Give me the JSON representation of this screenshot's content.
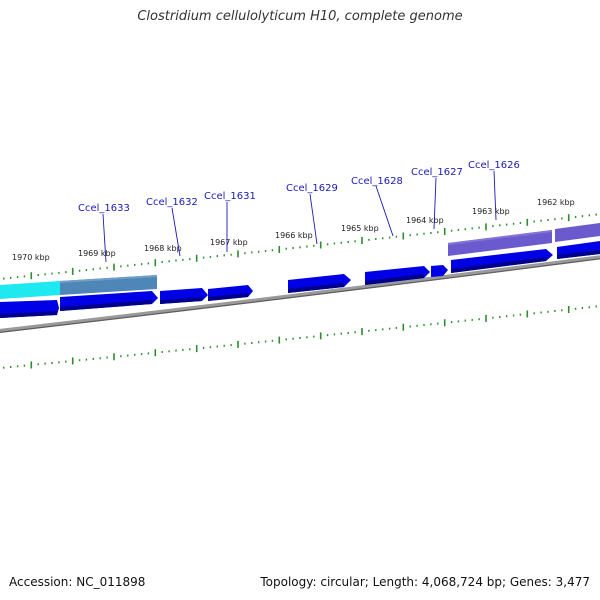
{
  "title": "Clostridium cellulolyticum H10, complete genome",
  "footer": {
    "accession": "Accession: NC_011898",
    "summary": "Topology: circular; Length: 4,068,724 bp; Genes: 3,477"
  },
  "scale_labels": [
    "1970 kbp",
    "1969 kbp",
    "1968 kbp",
    "1967 kbp",
    "1966 kbp",
    "1965 kbp",
    "1964 kbp",
    "1963 kbp",
    "1962 kbp"
  ],
  "gene_labels": [
    "Ccel_1633",
    "Ccel_1632",
    "Ccel_1631",
    "Ccel_1629",
    "Ccel_1628",
    "Ccel_1627",
    "Ccel_1626"
  ],
  "colors": {
    "gene": "#0000e6",
    "gene_shade": "#00008a",
    "backbone": "#808080",
    "tick": "#2e8b2e",
    "label": "#1a1ab3",
    "cyan_feature": "#1ee8f0",
    "steel_feature": "#4f86b8",
    "purple_feature": "#6a5acd"
  }
}
